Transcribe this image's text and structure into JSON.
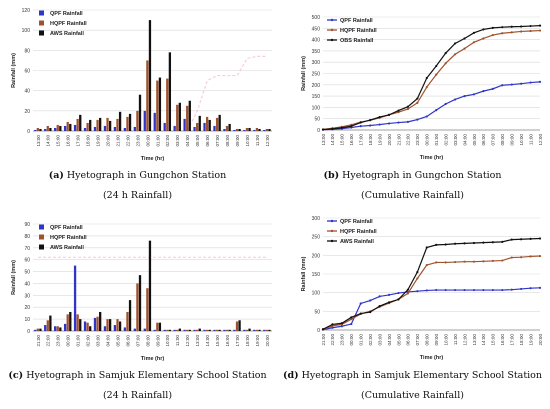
{
  "panels": [
    {
      "id": "a",
      "caption_label": "(a)",
      "caption_text": "Hyetograph in Gungchon Station",
      "caption_sub": "(24 h Rainfall)",
      "chart_data": {
        "type": "bar",
        "ylabel": "Rainfall (mm)",
        "xlabel": "Time (hr)",
        "ylim": [
          0,
          120
        ],
        "yticks": [
          0,
          20,
          40,
          60,
          80,
          100,
          120
        ],
        "categories": [
          "13:00",
          "14:00",
          "15:00",
          "16:00",
          "17:00",
          "18:00",
          "19:00",
          "20:00",
          "21:00",
          "22:00",
          "23:00",
          "00:00",
          "01:00",
          "02:00",
          "03:00",
          "04:00",
          "05:00",
          "06:00",
          "07:00",
          "08:00",
          "09:00",
          "10:00",
          "11:00",
          "12:00"
        ],
        "legend_position": "top-left",
        "series": [
          {
            "name": "QPF Rainfall",
            "color": "#2f35c8",
            "values": [
              1,
              2,
              3,
              5,
              6,
              3,
              4,
              5,
              4,
              3,
              4,
              20,
              18,
              8,
              5,
              12,
              4,
              8,
              5,
              2,
              1,
              1,
              1,
              1
            ]
          },
          {
            "name": "HQPF Rainfall",
            "color": "#a0522d",
            "values": [
              3,
              5,
              6,
              9,
              12,
              8,
              11,
              13,
              12,
              14,
              20,
              70,
              50,
              52,
              26,
              25,
              8,
              14,
              13,
              5,
              2,
              3,
              3,
              2
            ]
          },
          {
            "name": "AWS Rainfall",
            "color": "#111111",
            "values": [
              2,
              3,
              5,
              7,
              16,
              11,
              13,
              10,
              19,
              17,
              36,
              110,
              53,
              78,
              28,
              30,
              15,
              11,
              16,
              7,
              2,
              3,
              2,
              2
            ]
          }
        ],
        "faint_line": {
          "color": "#f2a0c8",
          "values": [
            0,
            0,
            0,
            0,
            0,
            0,
            0,
            0,
            0,
            0,
            0,
            0,
            0,
            0,
            0,
            0,
            20,
            50,
            55,
            55,
            55,
            72,
            74,
            74
          ]
        }
      }
    },
    {
      "id": "b",
      "caption_label": "(b)",
      "caption_text": "Hyetograph in Gungchon Station",
      "caption_sub": "(Cumulative Rainfall)",
      "chart_data": {
        "type": "line",
        "ylabel": "Rainfall (mm)",
        "xlabel": "Time (hr)",
        "ylim": [
          0,
          500
        ],
        "yticks": [
          0,
          50,
          100,
          150,
          200,
          250,
          300,
          350,
          400,
          450,
          500
        ],
        "categories": [
          "13:00",
          "14:00",
          "15:00",
          "16:00",
          "17:00",
          "18:00",
          "19:00",
          "20:00",
          "21:00",
          "22:00",
          "23:00",
          "00:00",
          "01:00",
          "02:00",
          "03:00",
          "04:00",
          "05:00",
          "06:00",
          "07:00",
          "08:00",
          "09:00",
          "10:00",
          "11:00",
          "12:00"
        ],
        "legend_position": "top-left",
        "series": [
          {
            "name": "QPF Rainfall",
            "color": "#2f35c8",
            "values": [
              1,
              3,
              6,
              11,
              17,
              20,
              24,
              29,
              33,
              36,
              46,
              60,
              88,
              115,
              135,
              150,
              158,
              172,
              182,
              198,
              201,
              205,
              210,
              213
            ]
          },
          {
            "name": "HQPF Rainfall",
            "color": "#a0522d",
            "values": [
              3,
              8,
              14,
              23,
              35,
              43,
              54,
              67,
              79,
              93,
              120,
              190,
              245,
              295,
              335,
              360,
              388,
              405,
              420,
              428,
              432,
              436,
              438,
              440
            ]
          },
          {
            "name": "OBS Rainfall",
            "color": "#111111",
            "values": [
              2,
              5,
              10,
              17,
              33,
              44,
              57,
              67,
              86,
              103,
              139,
              230,
              283,
              340,
              383,
              405,
              430,
              445,
              452,
              455,
              457,
              458,
              460,
              462
            ]
          }
        ]
      }
    },
    {
      "id": "c",
      "caption_label": "(c)",
      "caption_text": "Hyetograph in Samjuk Elementary School Station",
      "caption_sub": "(24 h Rainfall)",
      "chart_data": {
        "type": "bar",
        "ylabel": "Rainfall (mm)",
        "xlabel": "Time (hr)",
        "ylim": [
          0,
          90
        ],
        "yticks": [
          0,
          10,
          20,
          30,
          40,
          50,
          60,
          70,
          80,
          90
        ],
        "categories": [
          "21:00",
          "22:00",
          "23:00",
          "00:00",
          "01:00",
          "02:00",
          "03:00",
          "04:00",
          "05:00",
          "06:00",
          "07:00",
          "08:00",
          "09:00",
          "10:00",
          "11:00",
          "12:00",
          "13:00",
          "14:00",
          "15:00",
          "16:00",
          "17:00",
          "18:00",
          "19:00",
          "20:00"
        ],
        "legend_position": "top-left",
        "series": [
          {
            "name": "QPF Rainfall",
            "color": "#2f35c8",
            "values": [
              1,
              5,
              4,
              6,
              55,
              8,
              11,
              4,
              5,
              3,
              2,
              2,
              1,
              1,
              1,
              1,
              1,
              1,
              1,
              1,
              1,
              1,
              1,
              1
            ]
          },
          {
            "name": "HQPF Rainfall",
            "color": "#a0522d",
            "values": [
              2,
              9,
              4,
              14,
              14,
              7,
              12,
              10,
              10,
              16,
              40,
              36,
              7,
              1,
              1,
              1,
              1,
              1,
              1,
              1,
              8,
              1,
              1,
              1
            ]
          },
          {
            "name": "AWS Rainfall",
            "color": "#111111",
            "values": [
              2,
              13,
              3,
              16,
              10,
              4,
              16,
              10,
              8,
              26,
              47,
              76,
              7,
              1,
              2,
              1,
              2,
              1,
              1,
              1,
              9,
              2,
              1,
              1
            ]
          }
        ],
        "faint_line": {
          "color": "#f2a0c8",
          "values": [
            62,
            62,
            62,
            62,
            62,
            62,
            62,
            62,
            62,
            62,
            62,
            62,
            62,
            62,
            62,
            62,
            62,
            62,
            62,
            62,
            62,
            62,
            62,
            62
          ]
        }
      }
    },
    {
      "id": "d",
      "caption_label": "(d)",
      "caption_text": "Hyetograph in Samjuk Elementary School Station",
      "caption_sub": "(Cumulative Rainfall)",
      "chart_data": {
        "type": "line",
        "ylabel": "Rainfall (mm)",
        "xlabel": "Time (hr)",
        "ylim": [
          0,
          300
        ],
        "yticks": [
          0,
          50,
          100,
          150,
          200,
          250,
          300
        ],
        "categories": [
          "21:00",
          "22:00",
          "23:00",
          "00:00",
          "01:00",
          "02:00",
          "03:00",
          "04:00",
          "05:00",
          "06:00",
          "07:00",
          "08:00",
          "09:00",
          "10:00",
          "11:00",
          "12:00",
          "13:00",
          "14:00",
          "15:00",
          "16:00",
          "17:00",
          "18:00",
          "19:00",
          "20:00"
        ],
        "legend_position": "top-left",
        "series": [
          {
            "name": "QPF Rainfall",
            "color": "#2f35c8",
            "values": [
              1,
              6,
              10,
              16,
              71,
              79,
              90,
              94,
              99,
              102,
              104,
              106,
              107,
              107,
              107,
              107,
              107,
              107,
              107,
              107,
              108,
              110,
              112,
              113
            ]
          },
          {
            "name": "HQPF Rainfall",
            "color": "#a0522d",
            "values": [
              2,
              11,
              15,
              29,
              43,
              50,
              62,
              72,
              82,
              98,
              138,
              174,
              181,
              181,
              182,
              183,
              183,
              184,
              185,
              186,
              194,
              195,
              197,
              198
            ]
          },
          {
            "name": "AWS Rainfall",
            "color": "#111111",
            "values": [
              2,
              15,
              18,
              34,
              44,
              48,
              64,
              74,
              82,
              108,
              155,
              221,
              228,
              229,
              231,
              232,
              233,
              234,
              235,
              236,
              242,
              243,
              244,
              245
            ]
          }
        ]
      }
    }
  ]
}
